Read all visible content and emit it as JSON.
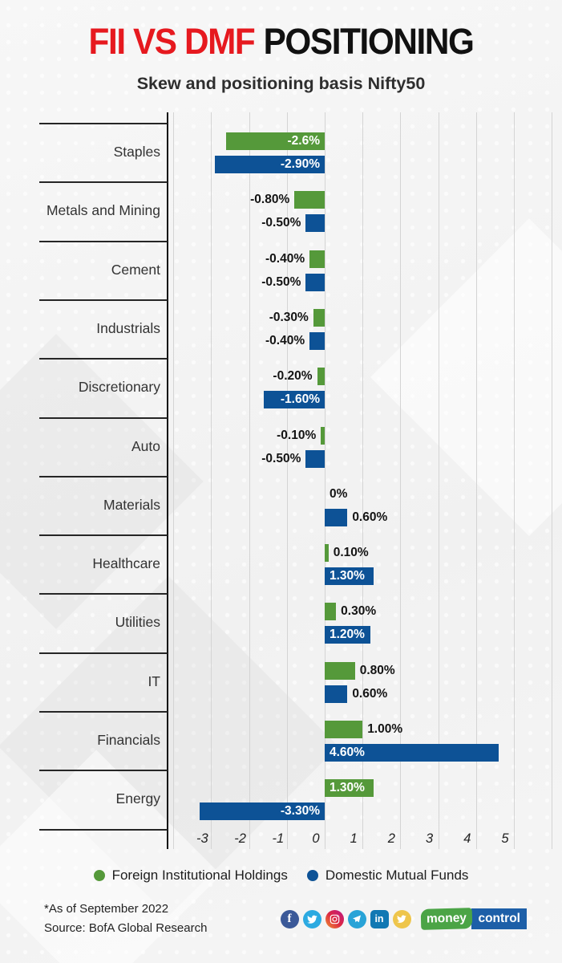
{
  "title": {
    "highlight": "FII VS DMF",
    "rest": "POSITIONING"
  },
  "subtitle": "Skew and positioning basis Nifty50",
  "colors": {
    "title_highlight": "#e6191f",
    "title_rest": "#111111",
    "fii_green": "#55993a",
    "dmf_blue": "#0d5296",
    "gridline": "#d4d4d4",
    "axis": "#101010"
  },
  "chart_data": {
    "type": "bar",
    "orientation": "horizontal",
    "categories": [
      "Staples",
      "Metals and Mining",
      "Cement",
      "Industrials",
      "Discretionary",
      "Auto",
      "Materials",
      "Healthcare",
      "Utilities",
      "IT",
      "Financials",
      "Energy"
    ],
    "series": [
      {
        "name": "Foreign Institutional Holdings",
        "color": "#55993a",
        "values": [
          -2.6,
          -0.8,
          -0.4,
          -0.3,
          -0.2,
          -0.1,
          0,
          0.1,
          0.3,
          0.8,
          1.0,
          1.3
        ],
        "labels": [
          "-2.6%",
          "-0.80%",
          "-0.40%",
          "-0.30%",
          "-0.20%",
          "-0.10%",
          "0%",
          "0.10%",
          "0.30%",
          "0.80%",
          "1.00%",
          "1.30%"
        ]
      },
      {
        "name": "Domestic Mutual Funds",
        "color": "#0d5296",
        "values": [
          -2.9,
          -0.5,
          -0.5,
          -0.4,
          -1.6,
          -0.5,
          0.6,
          1.3,
          1.2,
          0.6,
          4.6,
          -3.3
        ],
        "labels": [
          "-2.90%",
          "-0.50%",
          "-0.50%",
          "-0.40%",
          "-1.60%",
          "-0.50%",
          "0.60%",
          "1.30%",
          "1.20%",
          "0.60%",
          "4.60%",
          "-3.30%"
        ]
      }
    ],
    "xticks": [
      -3,
      -2,
      -1,
      0,
      1,
      2,
      3,
      4,
      5
    ],
    "gridline_values": [
      -4,
      -3,
      -2,
      -1,
      0,
      1,
      2,
      3,
      4,
      5,
      6
    ],
    "xlim": [
      -4.15,
      6.25
    ],
    "grid": true,
    "legend_position": "bottom",
    "value_label_format": "percent"
  },
  "legend": {
    "items": [
      {
        "label": "Foreign Institutional Holdings",
        "color": "#55993a"
      },
      {
        "label": "Domestic Mutual Funds",
        "color": "#0d5296"
      }
    ]
  },
  "footer": {
    "footnote": "*As of September 2022",
    "source": "Source: BofA Global Research"
  },
  "social": {
    "icons": [
      "facebook",
      "twitter",
      "instagram",
      "telegram",
      "linkedin",
      "koo"
    ],
    "linkedin_text": "in",
    "facebook_text": "f"
  },
  "logo": {
    "money": "money",
    "control": "control",
    "money_bg": "#4ba446",
    "control_bg": "#1d5fa8"
  }
}
